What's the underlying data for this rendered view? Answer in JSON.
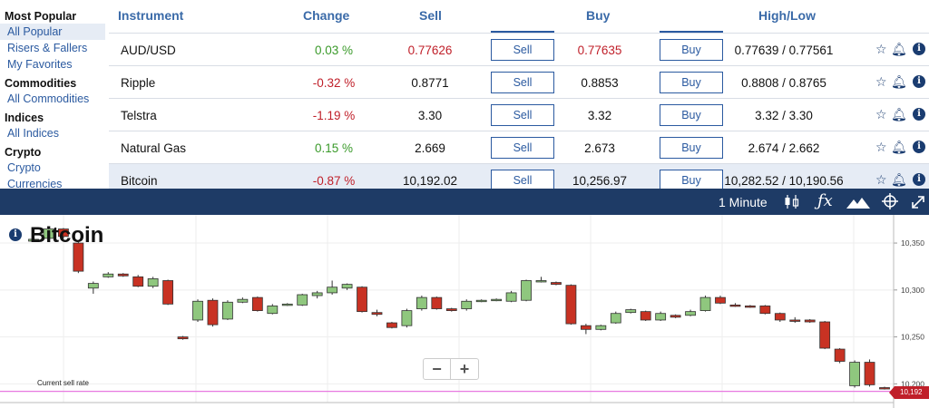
{
  "sidebar": {
    "groups": [
      {
        "title": "Most Popular",
        "items": [
          "All Popular",
          "Risers & Fallers",
          "My Favorites"
        ]
      },
      {
        "title": "Commodities",
        "items": [
          "All Commodities"
        ]
      },
      {
        "title": "Indices",
        "items": [
          "All Indices"
        ]
      },
      {
        "title": "Crypto",
        "items": [
          "Crypto Currencies"
        ]
      }
    ]
  },
  "table": {
    "headers": {
      "instrument": "Instrument",
      "change": "Change",
      "sell": "Sell",
      "buy": "Buy",
      "highlow": "High/Low"
    },
    "sell_label": "Sell",
    "buy_label": "Buy",
    "rows": [
      {
        "instrument": "AUD/USD",
        "change": "0.03 %",
        "sell": "0.77626",
        "buy": "0.77635",
        "highlow": "0.77639 / 0.77561"
      },
      {
        "instrument": "Ripple",
        "change": "-0.32 %",
        "sell": "0.8771",
        "buy": "0.8853",
        "highlow": "0.8808 / 0.8765"
      },
      {
        "instrument": "Telstra",
        "change": "-1.19 %",
        "sell": "3.30",
        "buy": "3.32",
        "highlow": "3.32 / 3.30"
      },
      {
        "instrument": "Natural Gas",
        "change": "0.15 %",
        "sell": "2.669",
        "buy": "2.673",
        "highlow": "2.674 / 2.662"
      },
      {
        "instrument": "Bitcoin",
        "change": "-0.87 %",
        "sell": "10,192.02",
        "buy": "10,256.97",
        "highlow": "10,282.52 / 10,190.56"
      }
    ]
  },
  "chart_toolbar": {
    "timeframe": "1 Minute",
    "icons": [
      "candlestick-icon",
      "fx-icon",
      "mountain-icon",
      "crosshair-icon",
      "expand-icon"
    ]
  },
  "chart": {
    "title": "Bitcoin",
    "current_sell_label": "Current sell rate",
    "current_badge": "10,192",
    "zoom_out": "−",
    "zoom_in": "+",
    "colors": {
      "up": "#8fc77e",
      "down": "#c83223",
      "current_line": "#e879e0"
    }
  },
  "chart_data": {
    "type": "candlestick",
    "y_ticks": [
      10350,
      10300,
      10250,
      10200
    ],
    "y_tick_labels": [
      "10,350",
      "10,300",
      "10,250",
      "10,200"
    ],
    "ylim": [
      10182,
      10380
    ],
    "current_value": 10192,
    "candles": [
      {
        "o": 10352,
        "c": 10354,
        "h": 10356,
        "l": 10351
      },
      {
        "o": 10355,
        "c": 10365,
        "h": 10366,
        "l": 10354
      },
      {
        "o": 10365,
        "c": 10357,
        "h": 10366,
        "l": 10355
      },
      {
        "o": 10350,
        "c": 10320,
        "h": 10351,
        "l": 10318
      },
      {
        "o": 10302,
        "c": 10307,
        "h": 10309,
        "l": 10296
      },
      {
        "o": 10314,
        "c": 10317,
        "h": 10319,
        "l": 10313
      },
      {
        "o": 10317,
        "c": 10315,
        "h": 10318,
        "l": 10314
      },
      {
        "o": 10314,
        "c": 10304,
        "h": 10316,
        "l": 10303
      },
      {
        "o": 10304,
        "c": 10312,
        "h": 10314,
        "l": 10302
      },
      {
        "o": 10310,
        "c": 10285,
        "h": 10311,
        "l": 10284
      },
      {
        "o": 10250,
        "c": 10248,
        "h": 10251,
        "l": 10247
      },
      {
        "o": 10268,
        "c": 10288,
        "h": 10290,
        "l": 10266
      },
      {
        "o": 10289,
        "c": 10263,
        "h": 10291,
        "l": 10261
      },
      {
        "o": 10269,
        "c": 10287,
        "h": 10289,
        "l": 10268
      },
      {
        "o": 10287,
        "c": 10290,
        "h": 10292,
        "l": 10286
      },
      {
        "o": 10292,
        "c": 10278,
        "h": 10293,
        "l": 10277
      },
      {
        "o": 10275,
        "c": 10283,
        "h": 10285,
        "l": 10274
      },
      {
        "o": 10284,
        "c": 10285,
        "h": 10286,
        "l": 10283
      },
      {
        "o": 10284,
        "c": 10295,
        "h": 10296,
        "l": 10283
      },
      {
        "o": 10294,
        "c": 10297,
        "h": 10299,
        "l": 10291
      },
      {
        "o": 10297,
        "c": 10303,
        "h": 10310,
        "l": 10295
      },
      {
        "o": 10302,
        "c": 10306,
        "h": 10307,
        "l": 10300
      },
      {
        "o": 10303,
        "c": 10277,
        "h": 10304,
        "l": 10276
      },
      {
        "o": 10276,
        "c": 10274,
        "h": 10279,
        "l": 10272
      },
      {
        "o": 10265,
        "c": 10260,
        "h": 10266,
        "l": 10259
      },
      {
        "o": 10262,
        "c": 10278,
        "h": 10280,
        "l": 10260
      },
      {
        "o": 10280,
        "c": 10292,
        "h": 10294,
        "l": 10278
      },
      {
        "o": 10292,
        "c": 10280,
        "h": 10293,
        "l": 10279
      },
      {
        "o": 10280,
        "c": 10278,
        "h": 10281,
        "l": 10277
      },
      {
        "o": 10280,
        "c": 10288,
        "h": 10290,
        "l": 10278
      },
      {
        "o": 10288,
        "c": 10289,
        "h": 10290,
        "l": 10287
      },
      {
        "o": 10289,
        "c": 10290,
        "h": 10291,
        "l": 10288
      },
      {
        "o": 10288,
        "c": 10297,
        "h": 10299,
        "l": 10287
      },
      {
        "o": 10289,
        "c": 10310,
        "h": 10311,
        "l": 10288
      },
      {
        "o": 10310,
        "c": 10310,
        "h": 10314,
        "l": 10308
      },
      {
        "o": 10308,
        "c": 10306,
        "h": 10309,
        "l": 10305
      },
      {
        "o": 10305,
        "c": 10264,
        "h": 10306,
        "l": 10263
      },
      {
        "o": 10262,
        "c": 10258,
        "h": 10264,
        "l": 10253
      },
      {
        "o": 10258,
        "c": 10262,
        "h": 10263,
        "l": 10257
      },
      {
        "o": 10265,
        "c": 10275,
        "h": 10277,
        "l": 10264
      },
      {
        "o": 10276,
        "c": 10279,
        "h": 10280,
        "l": 10275
      },
      {
        "o": 10277,
        "c": 10268,
        "h": 10278,
        "l": 10267
      },
      {
        "o": 10268,
        "c": 10275,
        "h": 10277,
        "l": 10267
      },
      {
        "o": 10273,
        "c": 10271,
        "h": 10274,
        "l": 10270
      },
      {
        "o": 10273,
        "c": 10277,
        "h": 10279,
        "l": 10272
      },
      {
        "o": 10278,
        "c": 10292,
        "h": 10294,
        "l": 10277
      },
      {
        "o": 10292,
        "c": 10286,
        "h": 10294,
        "l": 10285
      },
      {
        "o": 10284,
        "c": 10283,
        "h": 10286,
        "l": 10282
      },
      {
        "o": 10283,
        "c": 10282,
        "h": 10284,
        "l": 10281
      },
      {
        "o": 10283,
        "c": 10275,
        "h": 10284,
        "l": 10274
      },
      {
        "o": 10275,
        "c": 10268,
        "h": 10276,
        "l": 10266
      },
      {
        "o": 10268,
        "c": 10267,
        "h": 10271,
        "l": 10265
      },
      {
        "o": 10268,
        "c": 10266,
        "h": 10269,
        "l": 10265
      },
      {
        "o": 10266,
        "c": 10238,
        "h": 10267,
        "l": 10237
      },
      {
        "o": 10237,
        "c": 10224,
        "h": 10238,
        "l": 10222
      },
      {
        "o": 10198,
        "c": 10223,
        "h": 10225,
        "l": 10196
      },
      {
        "o": 10223,
        "c": 10199,
        "h": 10226,
        "l": 10197
      },
      {
        "o": 10196,
        "c": 10195,
        "h": 10197,
        "l": 10194
      }
    ]
  }
}
